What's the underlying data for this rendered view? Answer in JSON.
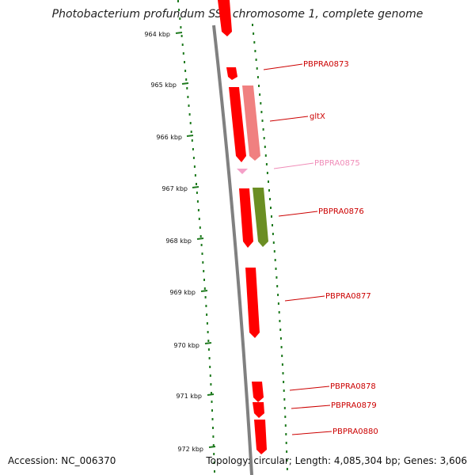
{
  "title": "Photobacterium profundum SS9 chromosome 1, complete genome",
  "footer": {
    "accession": "Accession: NC_006370",
    "topology": "Topology: circular; Length: 4,085,304 bp; Genes: 3,606"
  },
  "colors": {
    "backbone": "#808080",
    "tick": "#1e7a1e",
    "gene_red": "#ff0000",
    "gene_pink": "#f08080",
    "gene_light_pink": "#f4a0c8",
    "gene_olive": "#6b8e23"
  },
  "ticks": [
    {
      "label": "964 kbp"
    },
    {
      "label": "965 kbp"
    },
    {
      "label": "966 kbp"
    },
    {
      "label": "967 kbp"
    },
    {
      "label": "968 kbp"
    },
    {
      "label": "969 kbp"
    },
    {
      "label": "970 kbp"
    },
    {
      "label": "971 kbp"
    },
    {
      "label": "972 kbp"
    }
  ],
  "genes": [
    {
      "name": "PBPRA0873",
      "color": "#ff0000",
      "label_color": "#cc0000"
    },
    {
      "name": "gltX",
      "color": "#ff0000",
      "label_color": "#cc0000"
    },
    {
      "name": "PBPRA0875",
      "color": "#f4a0c8",
      "label_color": "#f08cb8"
    },
    {
      "name": "PBPRA0876",
      "color": "#ff0000",
      "label_color": "#cc0000"
    },
    {
      "name": "PBPRA0877",
      "color": "#ff0000",
      "label_color": "#cc0000"
    },
    {
      "name": "PBPRA0878",
      "color": "#ff0000",
      "label_color": "#cc0000"
    },
    {
      "name": "PBPRA0879",
      "color": "#ff0000",
      "label_color": "#cc0000"
    },
    {
      "name": "PBPRA0880",
      "color": "#ff0000",
      "label_color": "#cc0000"
    }
  ]
}
